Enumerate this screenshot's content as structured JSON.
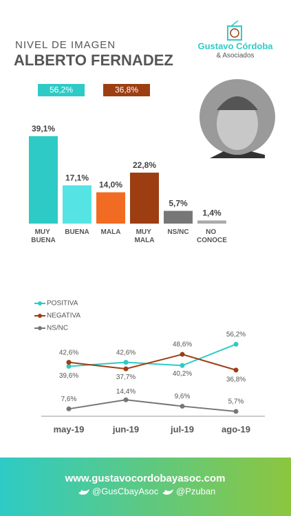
{
  "header": {
    "title": "NIVEL DE IMAGEN",
    "subtitle": "ALBERTO FERNADEZ",
    "logo_name": "Gustavo Córdoba",
    "logo_sub": "& Asociados"
  },
  "chart_data": [
    {
      "type": "bar",
      "categories": [
        "MUY BUENA",
        "BUENA",
        "MALA",
        "MUY MALA",
        "NS/NC",
        "NO CONOCE"
      ],
      "values": [
        39.1,
        17.1,
        14.0,
        22.8,
        5.7,
        1.4
      ],
      "value_labels": [
        "39,1%",
        "17,1%",
        "14,0%",
        "22,8%",
        "5,7%",
        "1,4%"
      ],
      "colors": [
        "#2ecbc6",
        "#55e3e3",
        "#f26b22",
        "#9c3d12",
        "#777777",
        "#aaaaaa"
      ],
      "ylim": [
        0,
        40
      ],
      "totals": {
        "values": [
          56.2,
          36.8
        ],
        "value_labels": [
          "56,2%",
          "36,8%"
        ],
        "colors": [
          "#2ecbc6",
          "#9c3d12"
        ]
      }
    },
    {
      "type": "line",
      "categories": [
        "may-19",
        "jun-19",
        "jul-19",
        "ago-19"
      ],
      "ylim": [
        0,
        60
      ],
      "legend": "top-left",
      "series": [
        {
          "name": "POSITIVA",
          "color": "#2ecbc6",
          "values": [
            39.6,
            42.6,
            40.2,
            56.2
          ],
          "value_labels": [
            "39,6%",
            "42,6%",
            "40,2%",
            "56,2%"
          ]
        },
        {
          "name": "NEGATIVA",
          "color": "#9c3d12",
          "values": [
            42.6,
            37.7,
            48.6,
            36.8
          ],
          "value_labels": [
            "42,6%",
            "37,7%",
            "48,6%",
            "36,8%"
          ]
        },
        {
          "name": "NS/NC",
          "color": "#777777",
          "values": [
            7.6,
            14.4,
            9.6,
            5.7
          ],
          "value_labels": [
            "7,6%",
            "14,4%",
            "9,6%",
            "5,7%"
          ]
        }
      ]
    }
  ],
  "footer": {
    "url": "www.gustavocordobayasoc.com",
    "twitter1": "@GusCbayAsoc",
    "twitter2": "@Pzuban"
  }
}
